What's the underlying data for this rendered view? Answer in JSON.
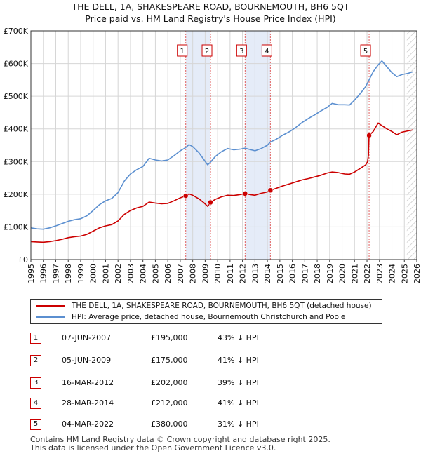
{
  "chart_data": {
    "type": "line",
    "title": "THE DELL, 1A, SHAKESPEARE ROAD, BOURNEMOUTH, BH6 5QT",
    "subtitle": "Price paid vs. HM Land Registry's House Price Index (HPI)",
    "y_ticks": [
      "£0",
      "£100K",
      "£200K",
      "£300K",
      "£400K",
      "£500K",
      "£600K",
      "£700K"
    ],
    "y_tick_values": [
      0,
      100000,
      200000,
      300000,
      400000,
      500000,
      600000,
      700000
    ],
    "ylim": [
      0,
      700000
    ],
    "xlim": [
      1995,
      2026
    ],
    "x_ticks": [
      "1995",
      "1996",
      "1997",
      "1998",
      "1999",
      "2000",
      "2001",
      "2002",
      "2003",
      "2004",
      "2005",
      "2006",
      "2007",
      "2008",
      "2009",
      "2010",
      "2011",
      "2012",
      "2013",
      "2014",
      "2015",
      "2016",
      "2017",
      "2018",
      "2019",
      "2020",
      "2021",
      "2022",
      "2023",
      "2024",
      "2025",
      "2026"
    ],
    "future_shading_from": 2025.2,
    "series": [
      {
        "name": "THE DELL, 1A, SHAKESPEARE ROAD, BOURNEMOUTH, BH6 5QT (detached house)",
        "color": "#cc0000",
        "points": [
          [
            1995.0,
            55000
          ],
          [
            1995.5,
            54000
          ],
          [
            1996.0,
            53000
          ],
          [
            1996.5,
            55000
          ],
          [
            1997.0,
            58000
          ],
          [
            1997.5,
            62000
          ],
          [
            1998.0,
            67000
          ],
          [
            1998.5,
            70000
          ],
          [
            1999.0,
            72000
          ],
          [
            1999.5,
            77000
          ],
          [
            2000.0,
            87000
          ],
          [
            2000.5,
            97000
          ],
          [
            2001.0,
            103000
          ],
          [
            2001.5,
            107000
          ],
          [
            2002.0,
            118000
          ],
          [
            2002.5,
            138000
          ],
          [
            2003.0,
            150000
          ],
          [
            2003.5,
            158000
          ],
          [
            2004.0,
            163000
          ],
          [
            2004.5,
            176000
          ],
          [
            2005.0,
            173000
          ],
          [
            2005.5,
            171000
          ],
          [
            2006.0,
            172000
          ],
          [
            2006.5,
            180000
          ],
          [
            2007.0,
            189000
          ],
          [
            2007.44,
            195000
          ],
          [
            2007.7,
            201000
          ],
          [
            2008.0,
            197000
          ],
          [
            2008.5,
            186000
          ],
          [
            2008.9,
            174000
          ],
          [
            2009.2,
            163000
          ],
          [
            2009.43,
            175000
          ],
          [
            2009.8,
            184000
          ],
          [
            2010.3,
            192000
          ],
          [
            2010.8,
            197000
          ],
          [
            2011.3,
            196000
          ],
          [
            2011.8,
            199000
          ],
          [
            2012.21,
            202000
          ],
          [
            2012.6,
            199000
          ],
          [
            2013.0,
            197000
          ],
          [
            2013.5,
            203000
          ],
          [
            2014.0,
            207000
          ],
          [
            2014.24,
            212000
          ],
          [
            2014.7,
            218000
          ],
          [
            2015.2,
            225000
          ],
          [
            2015.8,
            232000
          ],
          [
            2016.3,
            238000
          ],
          [
            2016.8,
            244000
          ],
          [
            2017.3,
            248000
          ],
          [
            2017.8,
            253000
          ],
          [
            2018.3,
            258000
          ],
          [
            2018.8,
            265000
          ],
          [
            2019.2,
            268000
          ],
          [
            2019.7,
            266000
          ],
          [
            2020.2,
            262000
          ],
          [
            2020.6,
            261000
          ],
          [
            2021.0,
            268000
          ],
          [
            2021.5,
            280000
          ],
          [
            2021.9,
            290000
          ],
          [
            2022.05,
            300000
          ],
          [
            2022.12,
            322000
          ],
          [
            2022.17,
            380000
          ],
          [
            2022.5,
            392000
          ],
          [
            2022.9,
            418000
          ],
          [
            2023.2,
            410000
          ],
          [
            2023.6,
            400000
          ],
          [
            2024.0,
            392000
          ],
          [
            2024.4,
            382000
          ],
          [
            2024.8,
            390000
          ],
          [
            2025.3,
            394000
          ],
          [
            2025.7,
            397000
          ]
        ]
      },
      {
        "name": "HPI: Average price, detached house, Bournemouth Christchurch and Poole",
        "color": "#5b8fd0",
        "points": [
          [
            1995.0,
            97000
          ],
          [
            1995.5,
            94000
          ],
          [
            1996.0,
            93000
          ],
          [
            1996.5,
            97000
          ],
          [
            1997.0,
            103000
          ],
          [
            1997.5,
            110000
          ],
          [
            1998.0,
            117000
          ],
          [
            1998.5,
            122000
          ],
          [
            1999.0,
            125000
          ],
          [
            1999.5,
            134000
          ],
          [
            2000.0,
            150000
          ],
          [
            2000.5,
            168000
          ],
          [
            2001.0,
            180000
          ],
          [
            2001.5,
            187000
          ],
          [
            2002.0,
            205000
          ],
          [
            2002.5,
            240000
          ],
          [
            2003.0,
            262000
          ],
          [
            2003.5,
            275000
          ],
          [
            2004.0,
            285000
          ],
          [
            2004.5,
            310000
          ],
          [
            2005.0,
            305000
          ],
          [
            2005.5,
            302000
          ],
          [
            2006.0,
            305000
          ],
          [
            2006.5,
            318000
          ],
          [
            2007.0,
            333000
          ],
          [
            2007.44,
            343000
          ],
          [
            2007.7,
            352000
          ],
          [
            2008.0,
            346000
          ],
          [
            2008.5,
            327000
          ],
          [
            2008.9,
            306000
          ],
          [
            2009.2,
            290000
          ],
          [
            2009.43,
            298000
          ],
          [
            2009.8,
            315000
          ],
          [
            2010.3,
            330000
          ],
          [
            2010.8,
            340000
          ],
          [
            2011.3,
            336000
          ],
          [
            2011.8,
            338000
          ],
          [
            2012.21,
            341000
          ],
          [
            2012.6,
            337000
          ],
          [
            2013.0,
            333000
          ],
          [
            2013.5,
            340000
          ],
          [
            2014.0,
            350000
          ],
          [
            2014.24,
            360000
          ],
          [
            2014.7,
            368000
          ],
          [
            2015.2,
            380000
          ],
          [
            2015.8,
            392000
          ],
          [
            2016.3,
            405000
          ],
          [
            2016.8,
            420000
          ],
          [
            2017.3,
            432000
          ],
          [
            2017.8,
            443000
          ],
          [
            2018.3,
            455000
          ],
          [
            2018.8,
            466000
          ],
          [
            2019.2,
            478000
          ],
          [
            2019.7,
            474000
          ],
          [
            2020.2,
            474000
          ],
          [
            2020.6,
            473000
          ],
          [
            2021.0,
            488000
          ],
          [
            2021.5,
            510000
          ],
          [
            2021.9,
            530000
          ],
          [
            2022.17,
            550000
          ],
          [
            2022.5,
            575000
          ],
          [
            2022.9,
            596000
          ],
          [
            2023.2,
            608000
          ],
          [
            2023.6,
            590000
          ],
          [
            2024.0,
            572000
          ],
          [
            2024.4,
            560000
          ],
          [
            2024.8,
            566000
          ],
          [
            2025.3,
            570000
          ],
          [
            2025.7,
            575000
          ]
        ]
      }
    ],
    "transactions": [
      {
        "label": "1",
        "x": 2007.44,
        "price": 195000,
        "date": "07-JUN-2007",
        "price_text": "£195,000",
        "hpi_text": "43% ↓ HPI"
      },
      {
        "label": "2",
        "x": 2009.43,
        "price": 175000,
        "date": "05-JUN-2009",
        "price_text": "£175,000",
        "hpi_text": "41% ↓ HPI"
      },
      {
        "label": "3",
        "x": 2012.21,
        "price": 202000,
        "date": "16-MAR-2012",
        "price_text": "£202,000",
        "hpi_text": "39% ↓ HPI"
      },
      {
        "label": "4",
        "x": 2014.24,
        "price": 212000,
        "date": "28-MAR-2014",
        "price_text": "£212,000",
        "hpi_text": "41% ↓ HPI"
      },
      {
        "label": "5",
        "x": 2022.17,
        "price": 380000,
        "date": "04-MAR-2022",
        "price_text": "£380,000",
        "hpi_text": "31% ↓ HPI"
      }
    ],
    "shaded_periods": [
      [
        2007.44,
        2009.43
      ],
      [
        2012.21,
        2014.24
      ]
    ],
    "legend_position": "below"
  },
  "footer": {
    "line1": "Contains HM Land Registry data © Crown copyright and database right 2025.",
    "line2": "This data is licensed under the Open Government Licence v3.0."
  }
}
